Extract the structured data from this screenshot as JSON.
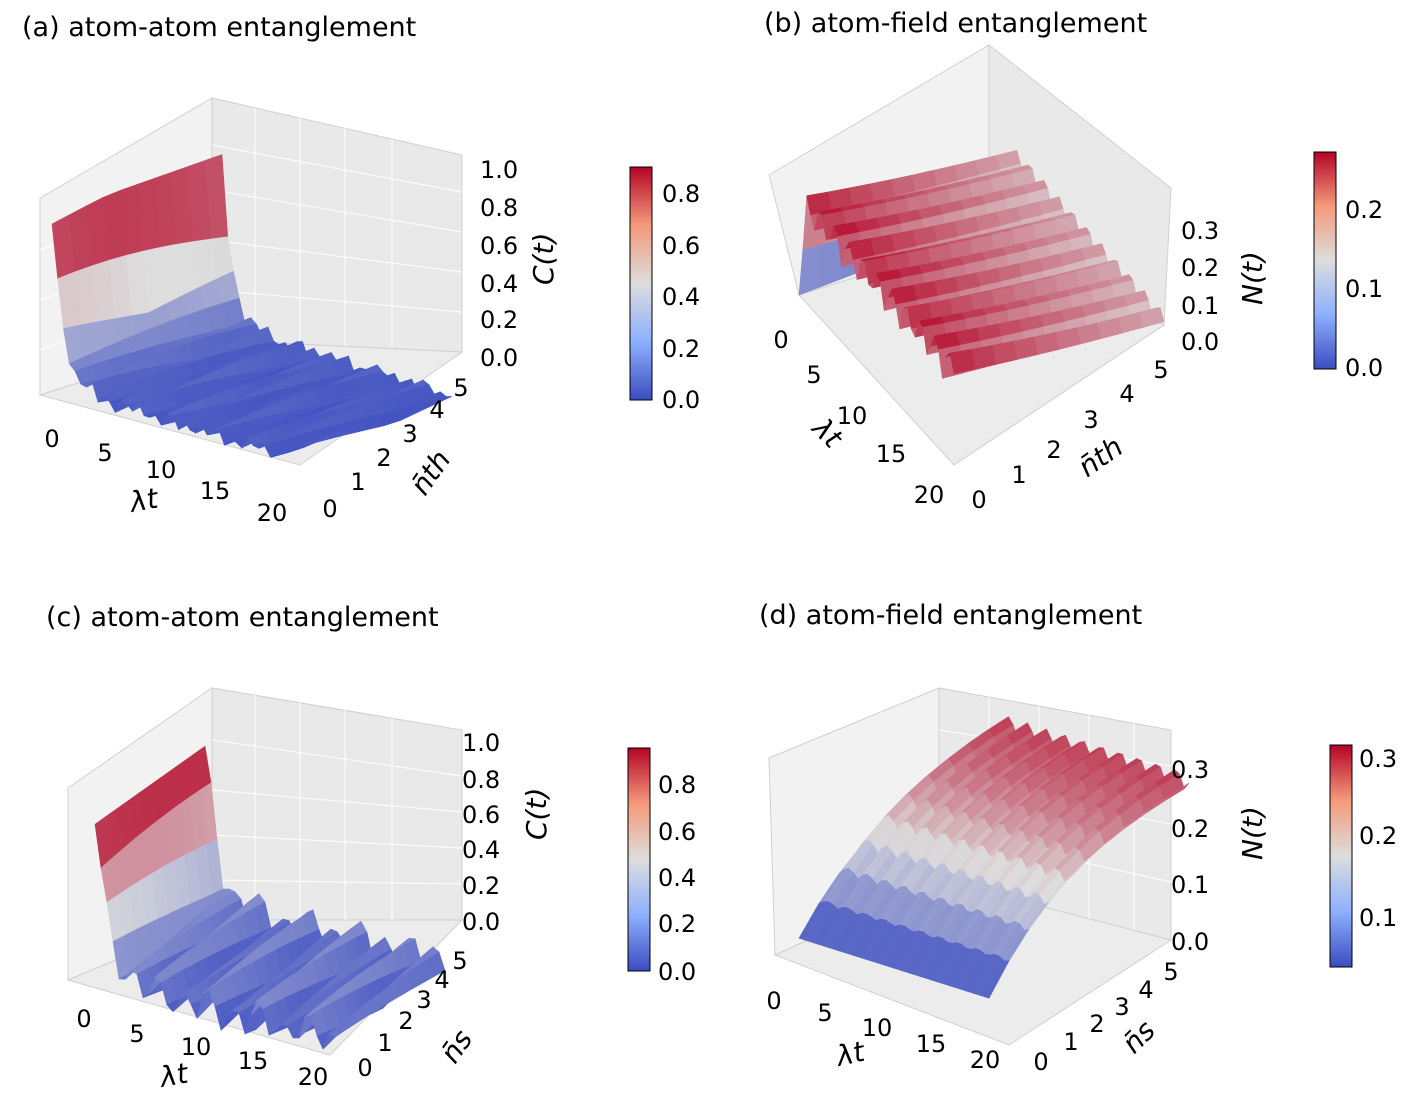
{
  "chart_data": [
    {
      "type": "surface3d",
      "title": "(a) atom-atom entanglement",
      "xlabel": "λt",
      "ylabel": "n̄th",
      "zlabel": "C(t)",
      "x_ticks": [
        "0",
        "5",
        "10",
        "15",
        "20"
      ],
      "y_ticks": [
        "0",
        "1",
        "2",
        "3",
        "4",
        "5"
      ],
      "z_ticks": [
        "0.0",
        "0.2",
        "0.4",
        "0.6",
        "0.8",
        "1.0"
      ],
      "xlim": [
        0,
        20
      ],
      "ylim": [
        0,
        5
      ],
      "zlim": [
        0,
        1.0
      ],
      "colorbar_ticks": [
        "0.0",
        "0.2",
        "0.4",
        "0.6",
        "0.8"
      ],
      "colorbar_range": [
        0,
        0.9
      ],
      "peak_value": 0.9,
      "series_profile_lambda_t": [
        0,
        1,
        2,
        3,
        4,
        5,
        6,
        8,
        10,
        12,
        14,
        16,
        18,
        20
      ],
      "series_profile_max": [
        0.9,
        0.5,
        0.12,
        0.05,
        0.18,
        0.08,
        0.2,
        0.1,
        0.22,
        0.08,
        0.15,
        0.1,
        0.12,
        0.08
      ]
    },
    {
      "type": "surface3d",
      "title": "(b) atom-field entanglement",
      "xlabel": "λt",
      "ylabel": "n̄th",
      "zlabel": "N(t)",
      "x_ticks": [
        "0",
        "5",
        "10",
        "15",
        "20"
      ],
      "y_ticks": [
        "0",
        "1",
        "2",
        "3",
        "4",
        "5"
      ],
      "z_ticks": [
        "0.0",
        "0.1",
        "0.2",
        "0.3"
      ],
      "xlim": [
        0,
        20
      ],
      "ylim": [
        0,
        5
      ],
      "zlim": [
        0,
        0.33
      ],
      "colorbar_ticks": [
        "0.0",
        "0.1",
        "0.2"
      ],
      "colorbar_range": [
        0,
        0.27
      ],
      "peak_value": 0.27
    },
    {
      "type": "surface3d",
      "title": "(c) atom-atom entanglement",
      "xlabel": "λt",
      "ylabel": "n̄s",
      "zlabel": "C(t)",
      "x_ticks": [
        "0",
        "5",
        "10",
        "15",
        "20"
      ],
      "y_ticks": [
        "0",
        "1",
        "2",
        "3",
        "4",
        "5"
      ],
      "z_ticks": [
        "0.0",
        "0.2",
        "0.4",
        "0.6",
        "0.8",
        "1.0"
      ],
      "xlim": [
        0,
        20
      ],
      "ylim": [
        0,
        5
      ],
      "zlim": [
        0,
        1.0
      ],
      "colorbar_ticks": [
        "0.0",
        "0.2",
        "0.4",
        "0.6",
        "0.8"
      ],
      "colorbar_range": [
        0,
        0.95
      ],
      "peak_value": 0.95
    },
    {
      "type": "surface3d",
      "title": "(d) atom-field entanglement",
      "xlabel": "λt",
      "ylabel": "n̄s",
      "zlabel": "N(t)",
      "x_ticks": [
        "0",
        "5",
        "10",
        "15",
        "20"
      ],
      "y_ticks": [
        "0",
        "1",
        "2",
        "3",
        "4",
        "5"
      ],
      "z_ticks": [
        "0.0",
        "0.1",
        "0.2",
        "0.3"
      ],
      "xlim": [
        0,
        20
      ],
      "ylim": [
        0,
        5
      ],
      "zlim": [
        0,
        0.33
      ],
      "colorbar_ticks": [
        "0.1",
        "0.2",
        "0.3"
      ],
      "colorbar_range": [
        0.03,
        0.31
      ],
      "peak_value": 0.31
    }
  ],
  "colormap": {
    "name": "coolwarm",
    "low": "#3b4cc0",
    "mid": "#dddddd",
    "high": "#b40426"
  }
}
